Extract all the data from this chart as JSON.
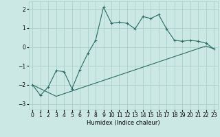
{
  "line1_x": [
    0,
    1,
    2,
    3,
    4,
    5,
    6,
    7,
    8,
    9,
    10,
    11,
    12,
    13,
    14,
    15,
    16,
    17,
    18,
    19,
    20,
    21,
    22,
    23
  ],
  "line1_y": [
    -2.0,
    -2.55,
    -2.1,
    -1.25,
    -1.3,
    -2.2,
    -1.2,
    -0.35,
    0.35,
    2.1,
    1.25,
    1.3,
    1.25,
    0.95,
    1.6,
    1.5,
    1.7,
    0.95,
    0.35,
    0.3,
    0.35,
    0.3,
    0.2,
    -0.1
  ],
  "line2_x": [
    0,
    3,
    22,
    23
  ],
  "line2_y": [
    -2.0,
    -2.6,
    0.05,
    -0.1
  ],
  "bg_color": "#cce8e4",
  "grid_color": "#aacfcb",
  "line_color": "#2a6b65",
  "xlabel": "Humidex (Indice chaleur)",
  "xlim": [
    -0.5,
    23.5
  ],
  "ylim": [
    -3.3,
    2.4
  ],
  "yticks": [
    -3,
    -2,
    -1,
    0,
    1,
    2
  ],
  "xticks": [
    0,
    1,
    2,
    3,
    4,
    5,
    6,
    7,
    8,
    9,
    10,
    11,
    12,
    13,
    14,
    15,
    16,
    17,
    18,
    19,
    20,
    21,
    22,
    23
  ]
}
